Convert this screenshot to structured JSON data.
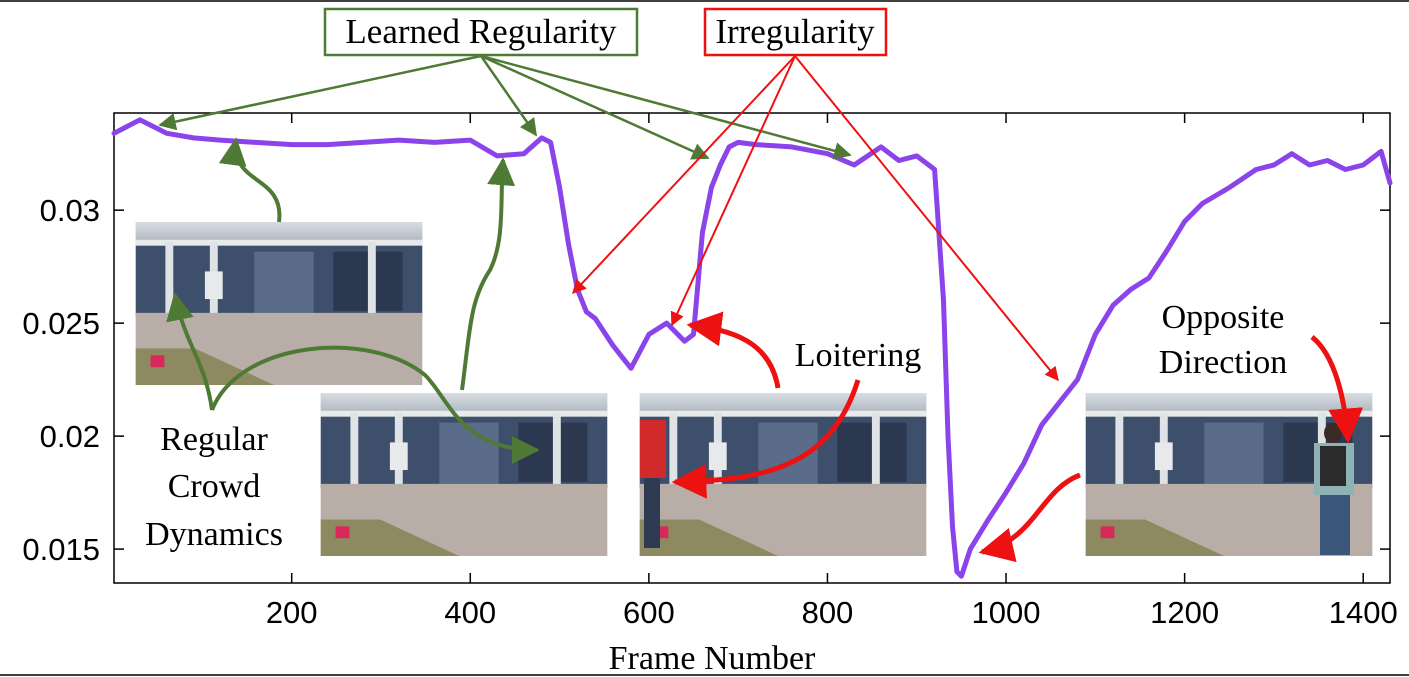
{
  "chart_data": {
    "type": "line",
    "xlabel": "Frame Number",
    "ylabel": "",
    "title": "",
    "xlim": [
      1,
      1430
    ],
    "ylim": [
      0.0135,
      0.0343
    ],
    "xticks": [
      200,
      400,
      600,
      800,
      1000,
      1200,
      1400
    ],
    "xtick_labels": [
      "200",
      "400",
      "600",
      "800",
      "1000",
      "1200",
      "1400"
    ],
    "yticks": [
      0.015,
      0.02,
      0.025,
      0.03
    ],
    "ytick_labels": [
      "0.015",
      "0.02",
      "0.025",
      "0.03"
    ],
    "grid": false,
    "line_color": "#8a44ea",
    "series": [
      {
        "name": "",
        "x": [
          1,
          30,
          60,
          90,
          120,
          160,
          200,
          240,
          280,
          320,
          360,
          400,
          430,
          460,
          480,
          490,
          500,
          510,
          520,
          530,
          540,
          560,
          580,
          600,
          620,
          640,
          650,
          660,
          670,
          680,
          690,
          700,
          720,
          760,
          800,
          830,
          860,
          880,
          900,
          920,
          930,
          935,
          940,
          945,
          950,
          960,
          980,
          1000,
          1020,
          1040,
          1060,
          1080,
          1100,
          1120,
          1140,
          1160,
          1180,
          1200,
          1220,
          1250,
          1280,
          1300,
          1320,
          1340,
          1360,
          1380,
          1400,
          1420,
          1430
        ],
        "y": [
          0.0334,
          0.034,
          0.0334,
          0.0332,
          0.0331,
          0.033,
          0.0329,
          0.0329,
          0.033,
          0.0331,
          0.033,
          0.0331,
          0.0324,
          0.0325,
          0.0332,
          0.033,
          0.031,
          0.0285,
          0.0265,
          0.0255,
          0.0252,
          0.024,
          0.023,
          0.0245,
          0.025,
          0.0242,
          0.0245,
          0.029,
          0.031,
          0.032,
          0.0328,
          0.033,
          0.0329,
          0.0328,
          0.0325,
          0.032,
          0.0328,
          0.0322,
          0.0324,
          0.0318,
          0.026,
          0.02,
          0.016,
          0.014,
          0.0138,
          0.015,
          0.0163,
          0.0175,
          0.0188,
          0.0205,
          0.0215,
          0.0225,
          0.0245,
          0.0258,
          0.0265,
          0.027,
          0.0282,
          0.0295,
          0.0303,
          0.031,
          0.0318,
          0.032,
          0.0325,
          0.032,
          0.0322,
          0.0318,
          0.032,
          0.0326,
          0.0312
        ]
      }
    ]
  },
  "annotations": {
    "learned_regularity": "Learned Regularity",
    "irregularity": "Irregularity",
    "regular_crowd_line1": "Regular",
    "regular_crowd_line2": "Crowd",
    "regular_crowd_line3": "Dynamics",
    "loitering": "Loitering",
    "opposite_line1": "Opposite",
    "opposite_line2": "Direction",
    "green_color": "#4f7a35",
    "red_color": "#ee1111"
  }
}
